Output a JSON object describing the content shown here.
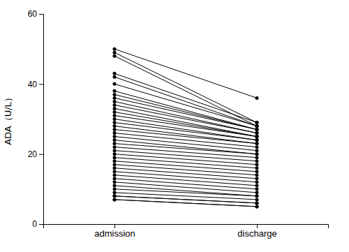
{
  "chart_data": {
    "type": "line",
    "categories": [
      "admission",
      "discharge"
    ],
    "y_label": "ADA（U/L）",
    "ylim": [
      0,
      60
    ],
    "yticks": [
      0,
      20,
      40,
      60
    ],
    "color": "#000000",
    "marker": "circle",
    "grid": false,
    "series": [
      {
        "values": [
          50,
          36
        ]
      },
      {
        "values": [
          49,
          29
        ]
      },
      {
        "values": [
          48,
          28
        ]
      },
      {
        "values": [
          43,
          29
        ]
      },
      {
        "values": [
          42,
          28
        ]
      },
      {
        "values": [
          40,
          28
        ]
      },
      {
        "values": [
          38,
          27
        ]
      },
      {
        "values": [
          37,
          27
        ]
      },
      {
        "values": [
          36,
          27
        ]
      },
      {
        "values": [
          35,
          26
        ]
      },
      {
        "values": [
          34,
          26
        ]
      },
      {
        "values": [
          33,
          25
        ]
      },
      {
        "values": [
          32,
          25
        ]
      },
      {
        "values": [
          31,
          25
        ]
      },
      {
        "values": [
          30,
          24
        ]
      },
      {
        "values": [
          29,
          24
        ]
      },
      {
        "values": [
          28,
          23
        ]
      },
      {
        "values": [
          27,
          23
        ]
      },
      {
        "values": [
          26,
          22
        ]
      },
      {
        "values": [
          25,
          21
        ]
      },
      {
        "values": [
          24,
          20
        ]
      },
      {
        "values": [
          23,
          20
        ]
      },
      {
        "values": [
          22,
          19
        ]
      },
      {
        "values": [
          21,
          18
        ]
      },
      {
        "values": [
          20,
          17
        ]
      },
      {
        "values": [
          19,
          16
        ]
      },
      {
        "values": [
          18,
          15
        ]
      },
      {
        "values": [
          17,
          14
        ]
      },
      {
        "values": [
          16,
          13
        ]
      },
      {
        "values": [
          15,
          12
        ]
      },
      {
        "values": [
          14,
          11
        ]
      },
      {
        "values": [
          13,
          10
        ]
      },
      {
        "values": [
          12,
          9
        ]
      },
      {
        "values": [
          11,
          8
        ]
      },
      {
        "values": [
          10,
          8
        ]
      },
      {
        "values": [
          9,
          7
        ]
      },
      {
        "values": [
          8,
          6
        ]
      },
      {
        "values": [
          8,
          6
        ]
      },
      {
        "values": [
          7,
          5
        ]
      },
      {
        "values": [
          7,
          5
        ]
      }
    ]
  }
}
